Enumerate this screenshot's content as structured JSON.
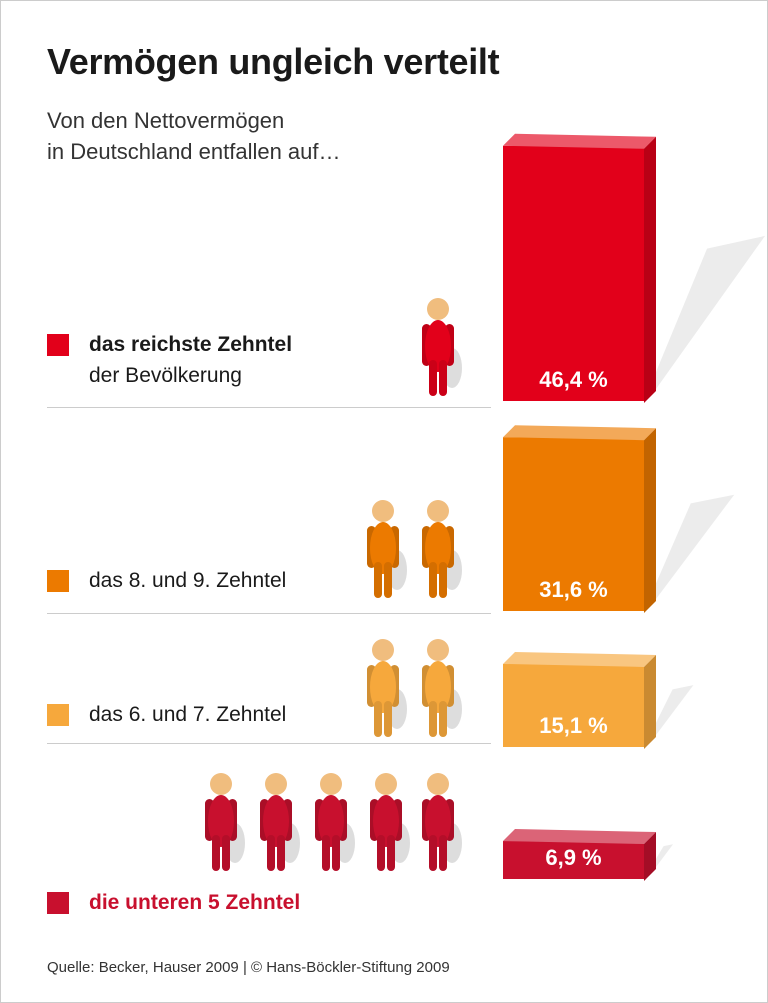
{
  "title": "Vermögen ungleich verteilt",
  "subtitle": [
    "Von den Nettovermögen",
    "in Deutschland entfallen auf…"
  ],
  "source": "Quelle: Becker, Hauser 2009 | © Hans-Böckler-Stiftung 2009",
  "chart_data": {
    "type": "bar",
    "orientation": "vertical-3d",
    "categories": [
      "das reichste Zehntel der Bevölkerung",
      "das 8. und 9. Zehntel",
      "das 6. und 7. Zehntel",
      "die unteren 5 Zehntel"
    ],
    "values": [
      46.4,
      31.6,
      15.1,
      6.9
    ],
    "unit": "%",
    "data_labels": [
      "46,4 %",
      "31,6 %",
      "15,1 %",
      "6,9 %"
    ],
    "colors": [
      "#e2001a",
      "#ec7a00",
      "#f6a83c",
      "#c8102e"
    ],
    "people_per_category": [
      1,
      2,
      2,
      5
    ],
    "grid": false,
    "legend": {
      "items": [
        {
          "bold": "das reichste Zehntel",
          "normal": "der Bevölkerung"
        },
        {
          "bold": "",
          "normal": "das 8. und 9. Zehntel"
        },
        {
          "bold": "",
          "normal": "das 6. und 7. Zehntel"
        },
        {
          "bold": "die unteren 5 Zehntel",
          "normal": ""
        }
      ]
    }
  }
}
